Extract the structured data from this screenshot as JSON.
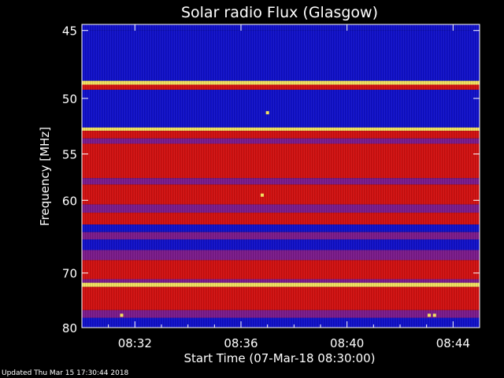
{
  "chart_data": {
    "type": "heatmap",
    "title": "Solar radio Flux (Glasgow)",
    "ylabel": "Frequency [MHz]",
    "xlabel": "Start Time (07-Mar-18 08:30:00)",
    "x_ticks": [
      "08:32",
      "08:36",
      "08:40",
      "08:44"
    ],
    "x_tick_minutes": [
      2,
      6,
      10,
      14
    ],
    "x_range_minutes": [
      0,
      15
    ],
    "y_ticks": [
      45,
      50,
      55,
      60,
      70,
      80
    ],
    "y_range": [
      44.6,
      80.0
    ],
    "y_scale": "reciprocal",
    "colors": {
      "background": "#000000",
      "low": "#1010c8",
      "mid": "#7a1a8a",
      "high": "#d01010",
      "peak": "#f0e060"
    },
    "bands": [
      {
        "from": 44.6,
        "to": 45.0,
        "level": "low"
      },
      {
        "from": 45.0,
        "to": 48.6,
        "level": "low"
      },
      {
        "from": 48.6,
        "to": 48.9,
        "level": "peak"
      },
      {
        "from": 48.9,
        "to": 49.3,
        "level": "high"
      },
      {
        "from": 49.3,
        "to": 52.5,
        "level": "low"
      },
      {
        "from": 52.5,
        "to": 52.8,
        "level": "peak"
      },
      {
        "from": 52.8,
        "to": 53.5,
        "level": "high"
      },
      {
        "from": 53.5,
        "to": 54.0,
        "level": "mid"
      },
      {
        "from": 54.0,
        "to": 57.5,
        "level": "high"
      },
      {
        "from": 57.5,
        "to": 58.2,
        "level": "mid"
      },
      {
        "from": 58.2,
        "to": 60.5,
        "level": "high"
      },
      {
        "from": 60.5,
        "to": 61.5,
        "level": "mid"
      },
      {
        "from": 61.5,
        "to": 63.0,
        "level": "high"
      },
      {
        "from": 63.0,
        "to": 64.0,
        "level": "low"
      },
      {
        "from": 64.0,
        "to": 65.0,
        "level": "mid"
      },
      {
        "from": 65.0,
        "to": 66.5,
        "level": "low"
      },
      {
        "from": 66.5,
        "to": 68.0,
        "level": "mid"
      },
      {
        "from": 68.0,
        "to": 71.0,
        "level": "high"
      },
      {
        "from": 71.0,
        "to": 71.6,
        "level": "mid"
      },
      {
        "from": 71.6,
        "to": 72.3,
        "level": "peak"
      },
      {
        "from": 72.3,
        "to": 76.5,
        "level": "high"
      },
      {
        "from": 76.5,
        "to": 78.0,
        "level": "mid"
      },
      {
        "from": 78.0,
        "to": 80.0,
        "level": "low"
      }
    ],
    "annotations_points": [
      {
        "minute": 6.8,
        "freq": 59.4
      },
      {
        "minute": 7.0,
        "freq": 51.2
      },
      {
        "minute": 1.5,
        "freq": 77.5
      },
      {
        "minute": 13.1,
        "freq": 77.5
      },
      {
        "minute": 13.3,
        "freq": 77.5
      }
    ]
  },
  "footer": "Updated Thu Mar 15 17:30:44 2018"
}
